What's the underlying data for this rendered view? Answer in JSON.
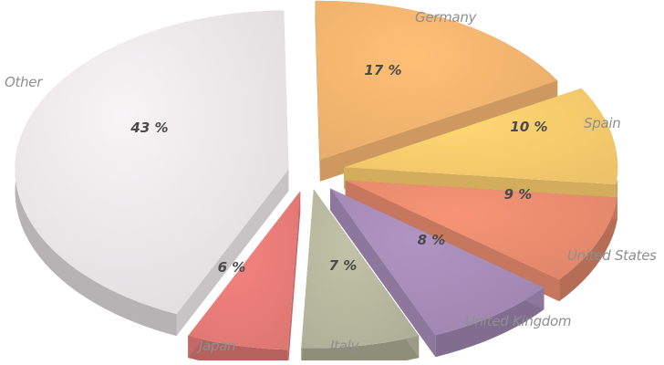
{
  "chart_data": {
    "type": "pie",
    "title": "",
    "slices": [
      {
        "label": "Germany",
        "value": 17,
        "display": "17 %",
        "color": "#f2b46e"
      },
      {
        "label": "Spain",
        "value": 10,
        "display": "10 %",
        "color": "#f8cb6c"
      },
      {
        "label": "United States",
        "value": 9,
        "display": "9 %",
        "color": "#e98c6e"
      },
      {
        "label": "United Kingdom",
        "value": 8,
        "display": "8 %",
        "color": "#a68cb7"
      },
      {
        "label": "Italy",
        "value": 7,
        "display": "7 %",
        "color": "#b6b79e"
      },
      {
        "label": "Japan",
        "value": 6,
        "display": "6 %",
        "color": "#e87c78"
      },
      {
        "label": "Other",
        "value": 43,
        "display": "43 %",
        "color": "#e9e6e8"
      }
    ],
    "legend": "none"
  }
}
